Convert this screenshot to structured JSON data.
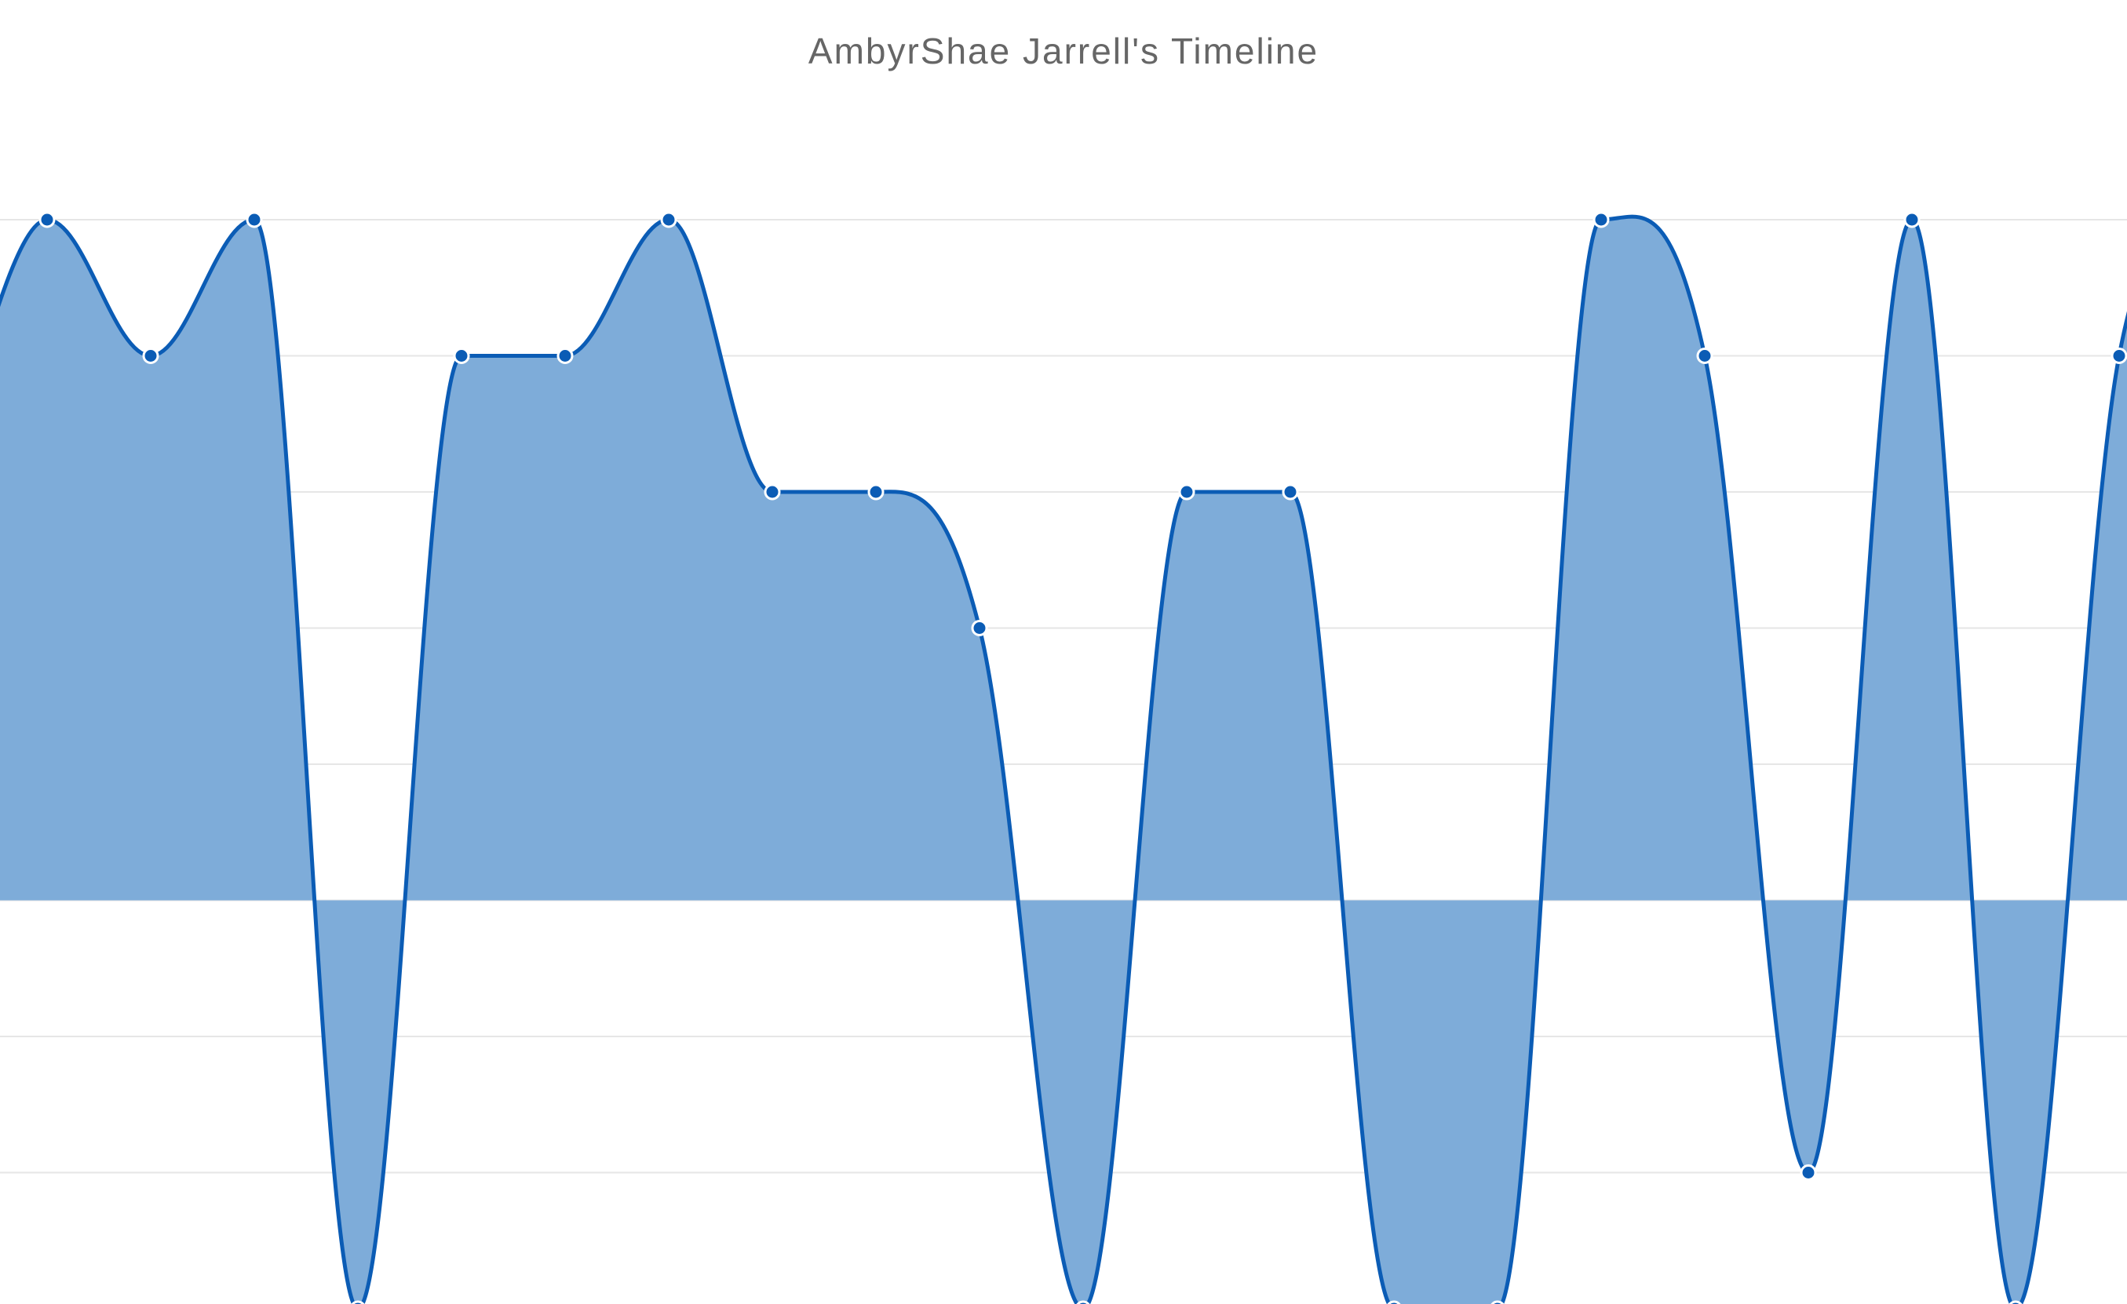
{
  "chart_data": {
    "type": "area",
    "title": "AmbyrShae Jarrell's Timeline",
    "xlabel": "",
    "ylabel": "",
    "ylim": [
      -3,
      5
    ],
    "grid": true,
    "legend": "none",
    "smooth": true,
    "series": [
      {
        "values": [
          5,
          4,
          5,
          -3,
          4,
          4,
          5,
          3,
          3,
          2,
          -3,
          3,
          3,
          -3,
          -3,
          5,
          4,
          -2,
          5,
          -3,
          4,
          5
        ],
        "color": "#0b5cb5",
        "fill": "#7eacd9"
      }
    ]
  }
}
